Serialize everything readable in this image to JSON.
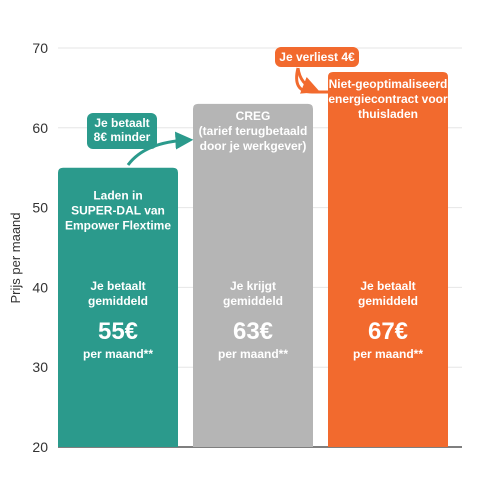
{
  "chart_data": {
    "type": "bar",
    "ylabel": "Prijs per maand",
    "ylim": [
      20,
      70
    ],
    "yticks": [
      20,
      30,
      40,
      50,
      60,
      70
    ],
    "grid": true,
    "categories": [
      "Laden in SUPER-DAL van Empower Flextime",
      "CREG (tarief terugbetaald door je werkgever)",
      "Niet-geoptimaliseerd energiecontract voor thuisladen"
    ],
    "values": [
      55,
      63,
      67
    ],
    "colors": [
      "#2b9a8c",
      "#b5b5b5",
      "#f26a2e"
    ],
    "bars": [
      {
        "title_lines": [
          "Laden in",
          "SUPER-DAL van",
          "Empower Flextime"
        ],
        "body_lines": [
          "Je betaalt",
          "gemiddeld"
        ],
        "amount": "55€",
        "unit": "per maand**",
        "title_top": 53
      },
      {
        "title_lines": [
          "CREG",
          "(tarief terugbetaald",
          "door je werkgever)"
        ],
        "body_lines": [
          "Je krijgt",
          "gemiddeld"
        ],
        "amount": "63€",
        "unit": "per maand**",
        "title_top": 63
      },
      {
        "title_lines": [
          "Niet-geoptimaliseerd",
          "energiecontract voor",
          "thuisladen"
        ],
        "body_lines": [
          "Je betaalt",
          "gemiddeld"
        ],
        "amount": "67€",
        "unit": "per maand**",
        "title_top": 67
      }
    ],
    "annotations": [
      {
        "lines": [
          "Je betaalt",
          "8€ minder"
        ],
        "color": "#2b9a8c",
        "from_bar": 0,
        "to_bar": 1
      },
      {
        "lines": [
          "Je verliest 4€"
        ],
        "color": "#f26a2e",
        "from_bar": 1,
        "to_bar": 2
      }
    ]
  }
}
